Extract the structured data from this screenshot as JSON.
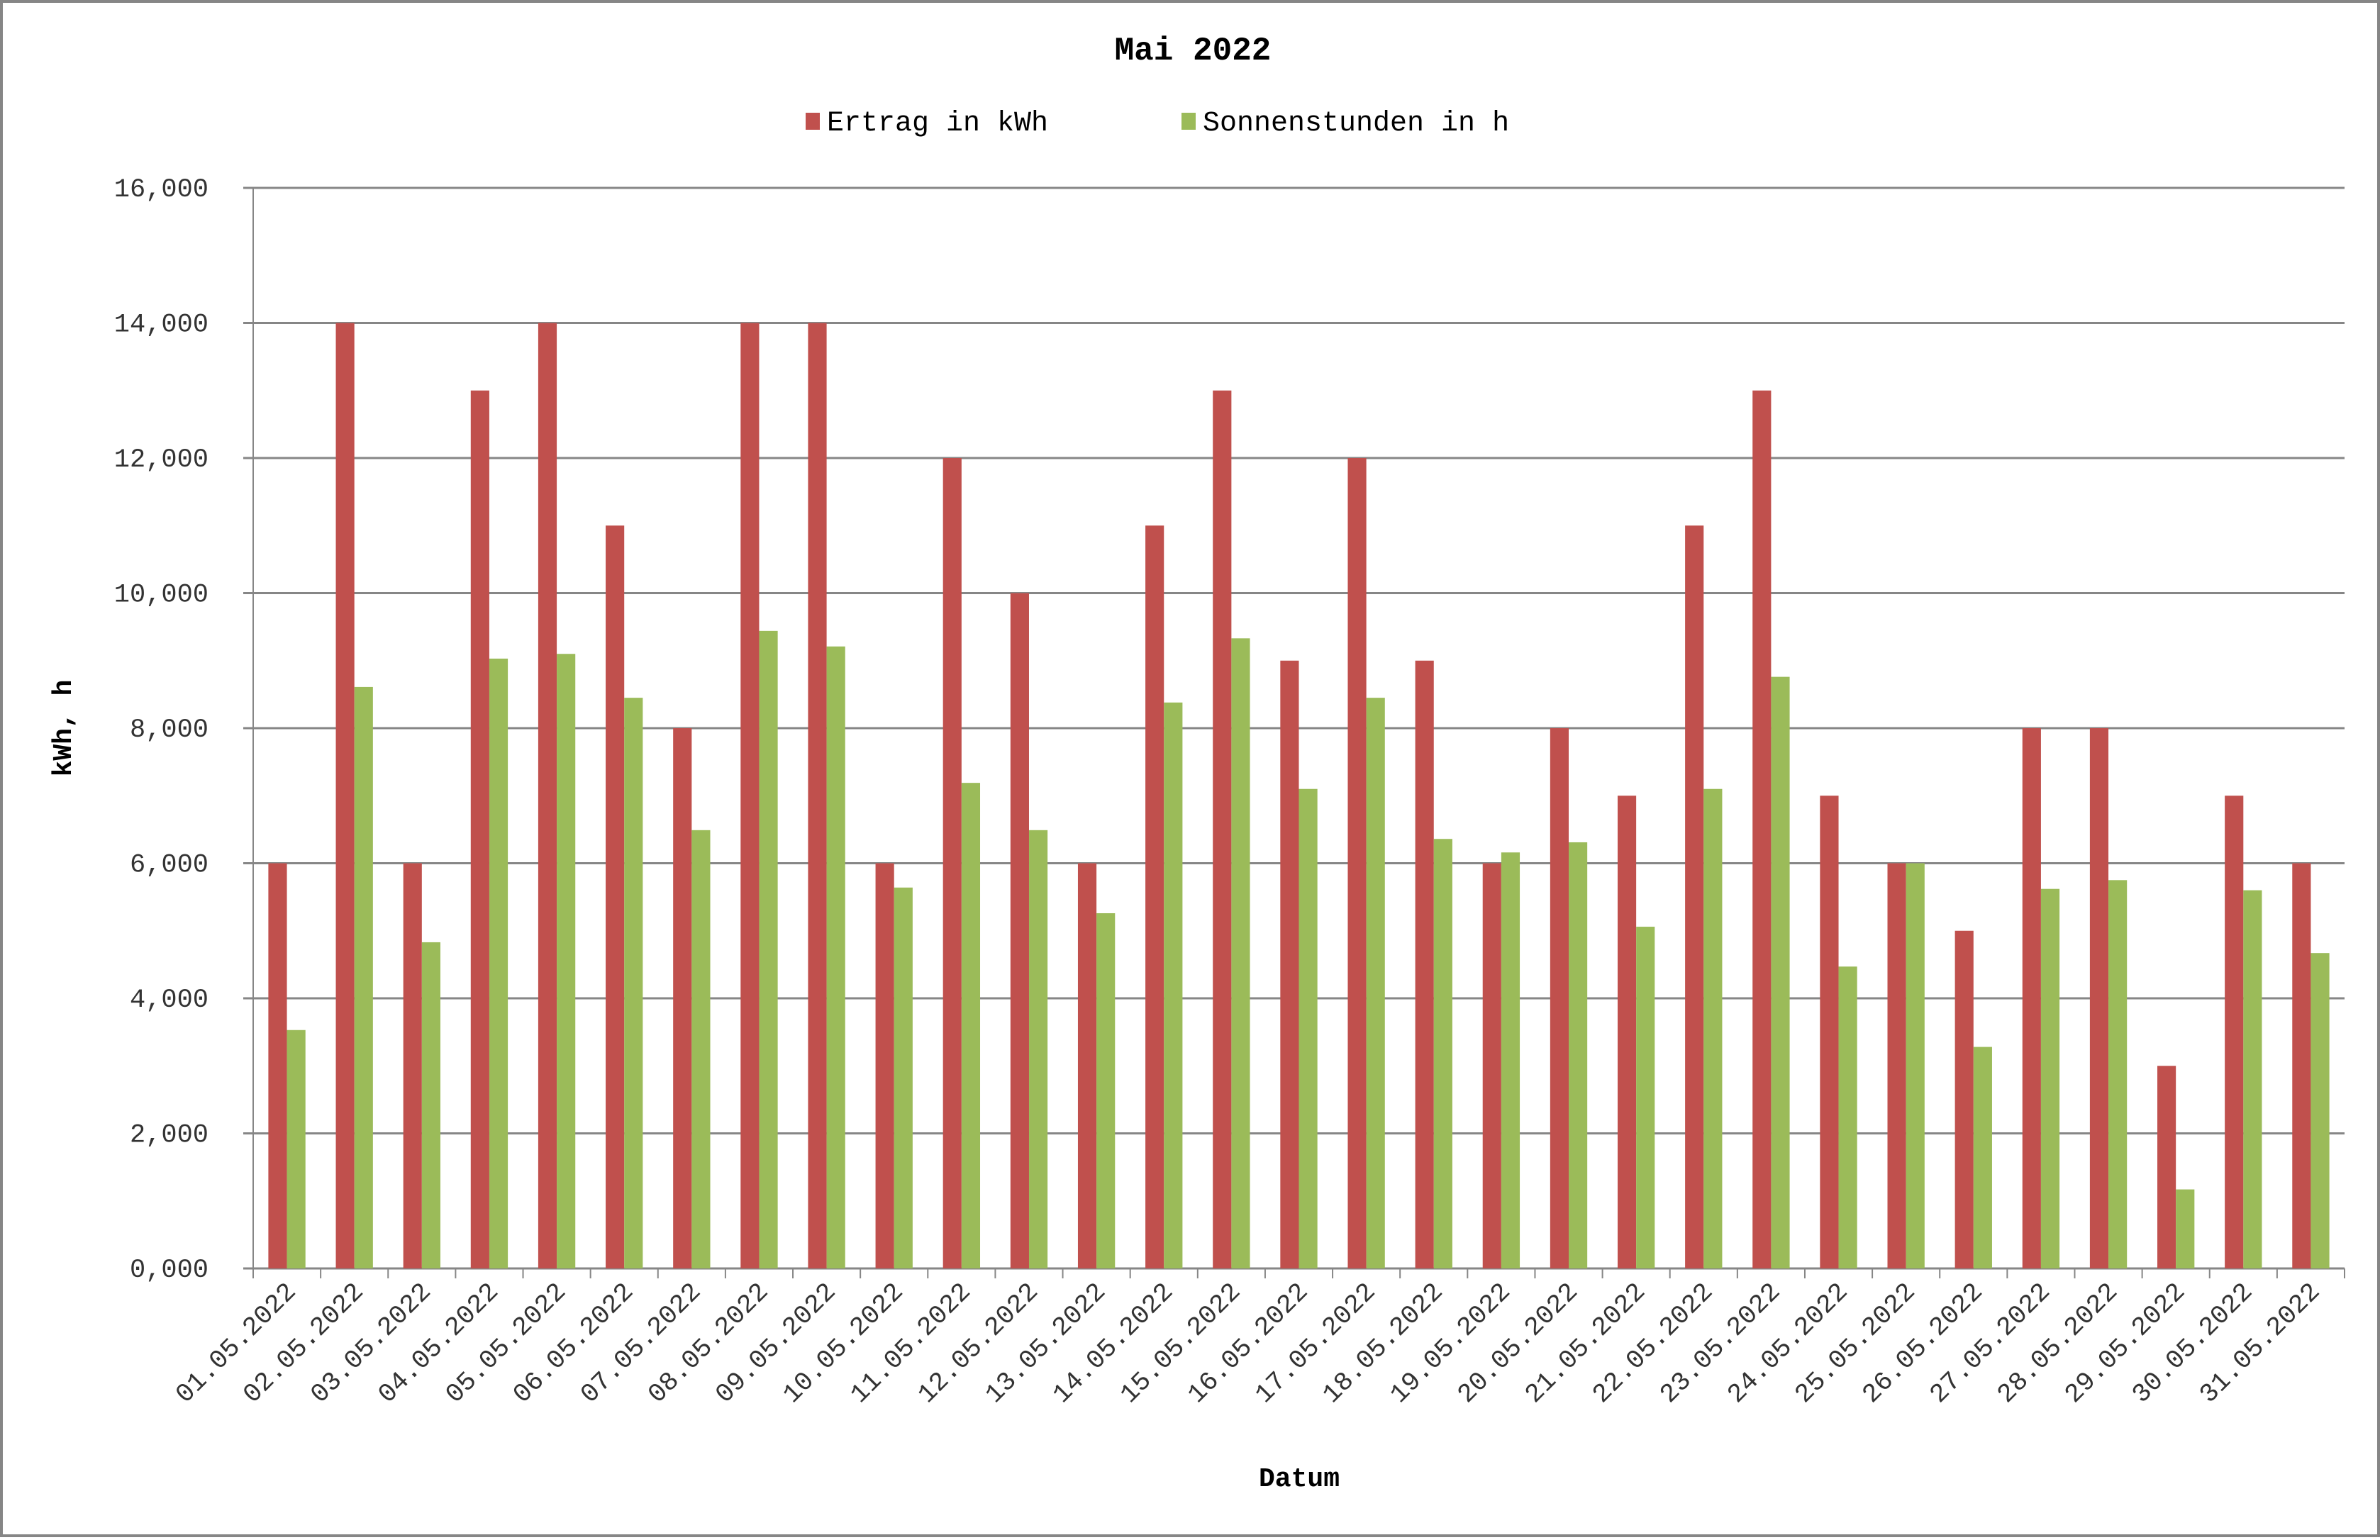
{
  "chart_data": {
    "type": "bar",
    "title": "Mai 2022",
    "xlabel": "Datum",
    "ylabel": "kWh, h",
    "ylim": [
      0,
      16
    ],
    "ytick_step": 2,
    "ytick_labels": [
      "0,000",
      "2,000",
      "4,000",
      "6,000",
      "8,000",
      "10,000",
      "12,000",
      "14,000",
      "16,000"
    ],
    "grid": true,
    "legend_position": "top",
    "categories": [
      "01.05.2022",
      "02.05.2022",
      "03.05.2022",
      "04.05.2022",
      "05.05.2022",
      "06.05.2022",
      "07.05.2022",
      "08.05.2022",
      "09.05.2022",
      "10.05.2022",
      "11.05.2022",
      "12.05.2022",
      "13.05.2022",
      "14.05.2022",
      "15.05.2022",
      "16.05.2022",
      "17.05.2022",
      "18.05.2022",
      "19.05.2022",
      "20.05.2022",
      "21.05.2022",
      "22.05.2022",
      "23.05.2022",
      "24.05.2022",
      "25.05.2022",
      "26.05.2022",
      "27.05.2022",
      "28.05.2022",
      "29.05.2022",
      "30.05.2022",
      "31.05.2022"
    ],
    "series": [
      {
        "name": "Ertrag in kWh",
        "color": "#c0504d",
        "values": [
          6,
          14,
          6,
          13,
          14,
          11,
          8,
          14,
          14,
          6,
          12,
          10,
          6,
          11,
          13,
          9,
          12,
          9,
          6,
          8,
          7,
          11,
          13,
          7,
          6,
          5,
          8,
          8,
          3,
          7,
          6
        ]
      },
      {
        "name": "Sonnenstunden in h",
        "color": "#9bbb59",
        "values": [
          3.53,
          8.61,
          4.83,
          9.03,
          9.1,
          8.45,
          6.49,
          9.44,
          9.21,
          5.64,
          7.19,
          6.49,
          5.26,
          8.38,
          9.33,
          7.1,
          8.45,
          6.36,
          6.16,
          6.31,
          5.06,
          7.1,
          8.76,
          4.47,
          6.0,
          3.28,
          5.62,
          5.75,
          1.17,
          5.6,
          4.67
        ]
      }
    ]
  }
}
